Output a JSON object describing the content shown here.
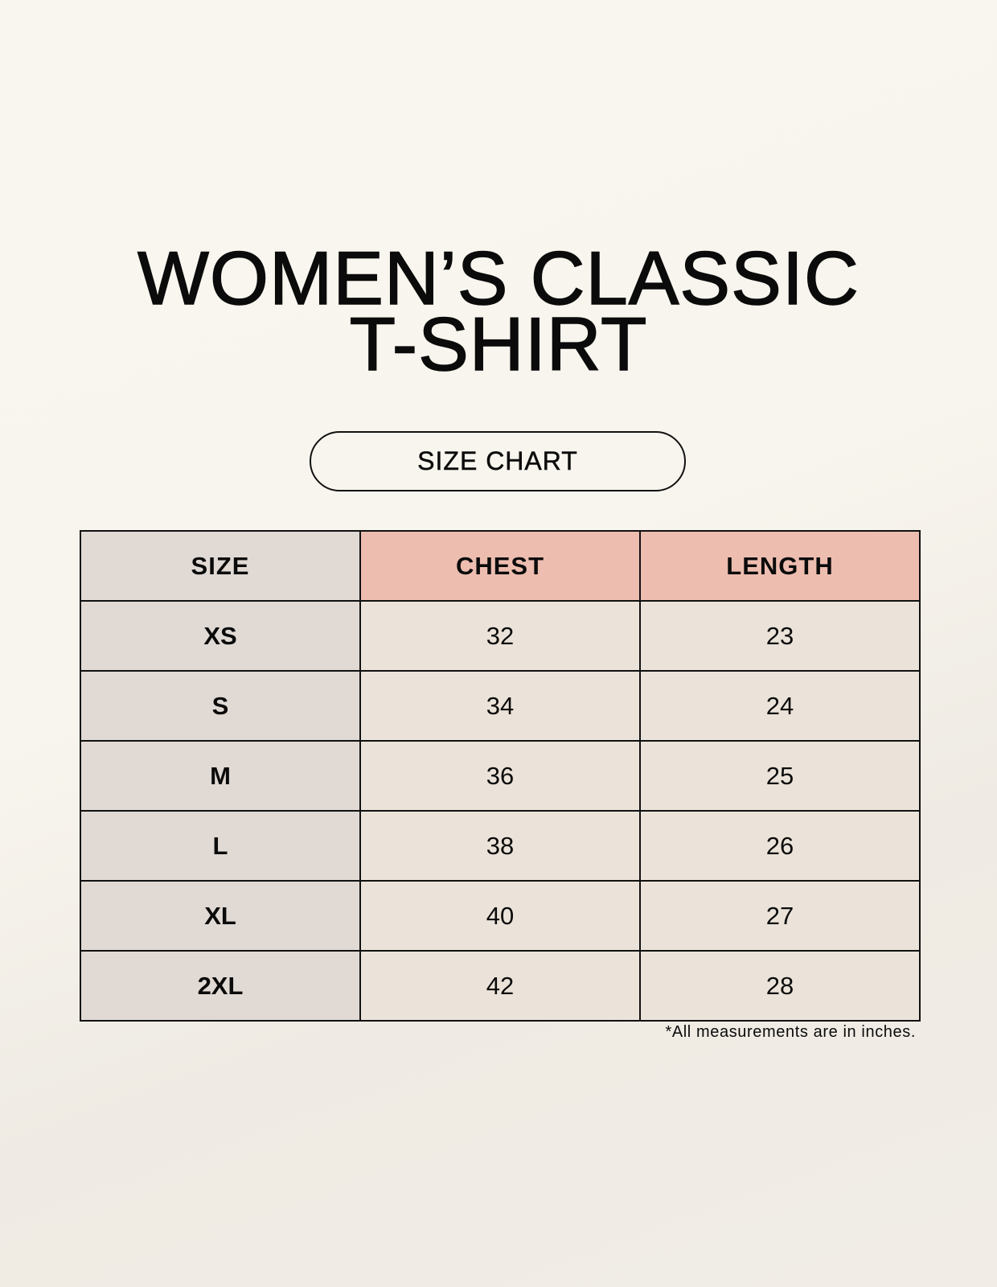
{
  "title": {
    "line1": "WOMEN’S CLASSIC",
    "line2": "T-SHIRT"
  },
  "subtitle": "SIZE CHART",
  "table": {
    "headers": [
      "SIZE",
      "CHEST",
      "LENGTH"
    ],
    "rows": [
      [
        "XS",
        "32",
        "23"
      ],
      [
        "S",
        "34",
        "24"
      ],
      [
        "M",
        "36",
        "25"
      ],
      [
        "L",
        "38",
        "26"
      ],
      [
        "XL",
        "40",
        "27"
      ],
      [
        "2XL",
        "42",
        "28"
      ]
    ]
  },
  "footnote": "*All measurements are in inches.",
  "colors": {
    "size_column": "#e0d9d4",
    "header_accent": "#edbdb0",
    "value_cells": "#ebe3d9",
    "background": "#f8f5ee"
  }
}
